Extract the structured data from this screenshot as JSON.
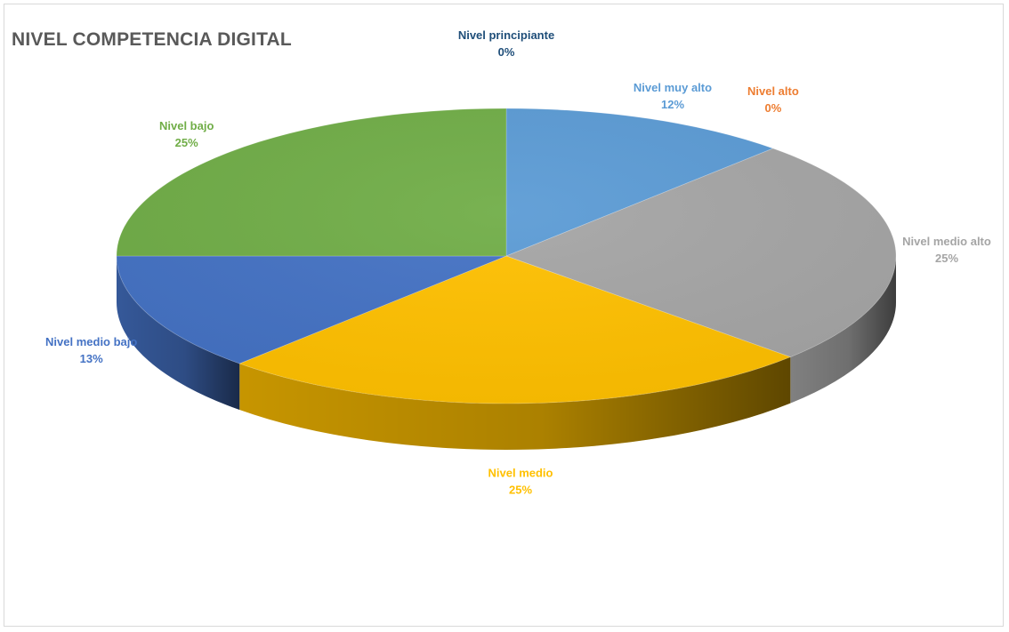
{
  "chart_data": {
    "type": "pie",
    "title": "NIVEL COMPETENCIA DIGITAL",
    "three_d": true,
    "slices": [
      {
        "label": "Nivel principiante",
        "value": 0,
        "percent_label": "0%",
        "color": "#1f4e79"
      },
      {
        "label": "Nivel muy alto",
        "value": 12,
        "percent_label": "12%",
        "color": "#5b9bd5"
      },
      {
        "label": "Nivel alto",
        "value": 0,
        "percent_label": "0%",
        "color": "#ed7d31"
      },
      {
        "label": "Nivel medio alto",
        "value": 25,
        "percent_label": "25%",
        "color": "#a5a5a5"
      },
      {
        "label": "Nivel medio",
        "value": 25,
        "percent_label": "25%",
        "color": "#ffc000"
      },
      {
        "label": "Nivel medio bajo",
        "value": 13,
        "percent_label": "13%",
        "color": "#4472c4"
      },
      {
        "label": "Nivel bajo",
        "value": 25,
        "percent_label": "25%",
        "color": "#70ad47"
      }
    ],
    "label_colors": {
      "Nivel principiante": "#1f4e79",
      "Nivel muy alto": "#5b9bd5",
      "Nivel alto": "#ed7d31",
      "Nivel medio alto": "#a5a5a5",
      "Nivel medio": "#ffc000",
      "Nivel medio bajo": "#4472c4",
      "Nivel bajo": "#70ad47"
    }
  }
}
